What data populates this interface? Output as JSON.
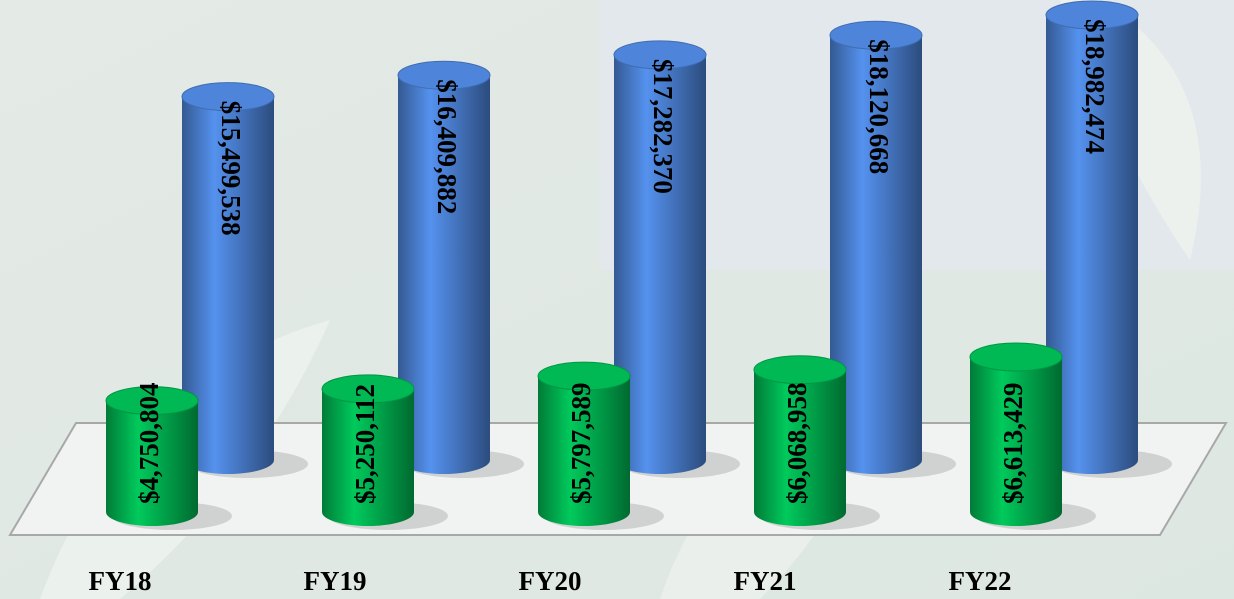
{
  "chart_data": {
    "type": "cylinder",
    "categories": [
      "FY18",
      "FY19",
      "FY20",
      "FY21",
      "FY22"
    ],
    "series": [
      {
        "color": "#00b050",
        "values": [
          4750804,
          5250112,
          5797589,
          6068958,
          6613429
        ],
        "value_labels": [
          "$4,750,804",
          "$5,250,112",
          "$5,797,589",
          "$6,068,958",
          "$6,613,429"
        ]
      },
      {
        "color": "#4a7fd0",
        "values": [
          15499538,
          16409882,
          17282370,
          18120668,
          18982474
        ],
        "value_labels": [
          "$15,499,538",
          "$16,409,882",
          "$17,282,370",
          "$18,120,668",
          "$18,982,474"
        ]
      }
    ]
  }
}
